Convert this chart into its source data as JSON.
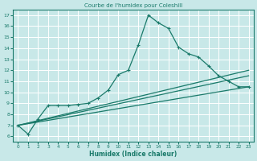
{
  "title": "Courbe de l'humidex pour Coleshill",
  "xlabel": "Humidex (Indice chaleur)",
  "ylabel": "",
  "bg_color": "#c8e8e8",
  "grid_color": "#ffffff",
  "line_color": "#1a7a6a",
  "xlim": [
    -0.5,
    23.5
  ],
  "ylim": [
    5.5,
    17.5
  ],
  "xticks": [
    0,
    1,
    2,
    3,
    4,
    5,
    6,
    7,
    8,
    9,
    10,
    11,
    12,
    13,
    14,
    15,
    16,
    17,
    18,
    19,
    20,
    21,
    22,
    23
  ],
  "yticks": [
    6,
    7,
    8,
    9,
    10,
    11,
    12,
    13,
    14,
    15,
    16,
    17
  ],
  "series_main": {
    "x": [
      0,
      1,
      2,
      3,
      4,
      5,
      6,
      7,
      8,
      9,
      10,
      11,
      12,
      13,
      14,
      15,
      16,
      17,
      18,
      19,
      20,
      21,
      22,
      23
    ],
    "y": [
      7.0,
      6.2,
      7.6,
      8.8,
      8.8,
      8.8,
      8.9,
      9.0,
      9.5,
      10.2,
      11.6,
      12.0,
      14.3,
      17.0,
      16.3,
      15.8,
      14.1,
      13.5,
      13.2,
      12.4,
      11.5,
      11.0,
      10.5,
      10.5
    ]
  },
  "series_lines": [
    {
      "x": [
        0,
        23
      ],
      "y": [
        7.0,
        10.5
      ]
    },
    {
      "x": [
        0,
        23
      ],
      "y": [
        7.0,
        11.5
      ]
    },
    {
      "x": [
        0,
        23
      ],
      "y": [
        7.0,
        12.0
      ]
    }
  ]
}
